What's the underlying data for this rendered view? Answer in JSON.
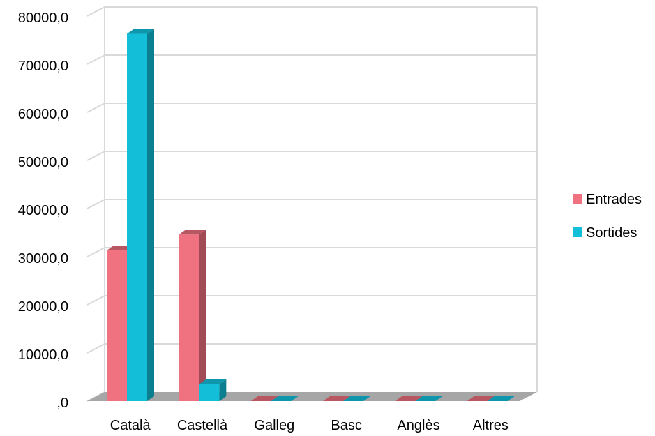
{
  "chart_data": {
    "type": "bar",
    "categories": [
      "Català",
      "Castellà",
      "Galleg",
      "Basc",
      "Anglès",
      "Altres"
    ],
    "series": [
      {
        "name": "Entrades",
        "values": [
          31300,
          34600,
          0,
          0,
          0,
          0
        ]
      },
      {
        "name": "Sortides",
        "values": [
          76300,
          3500,
          0,
          0,
          0,
          0
        ]
      }
    ],
    "y_ticks": [
      ",0",
      "10000,0",
      "20000,0",
      "30000,0",
      "40000,0",
      "50000,0",
      "60000,0",
      "70000,0",
      "80000,0"
    ],
    "ylim": [
      0,
      80000
    ],
    "grid": true,
    "legend": "right",
    "style": "3d-clustered-column",
    "colors": {
      "Entrades": {
        "front": "#F0717F",
        "side": "#A04B55",
        "top": "#B85662"
      },
      "Sortides": {
        "front": "#13BED9",
        "side": "#0B7E90",
        "top": "#0E96AC"
      },
      "floor": "#A6A6A6",
      "grid": "#D9D9D9"
    }
  }
}
